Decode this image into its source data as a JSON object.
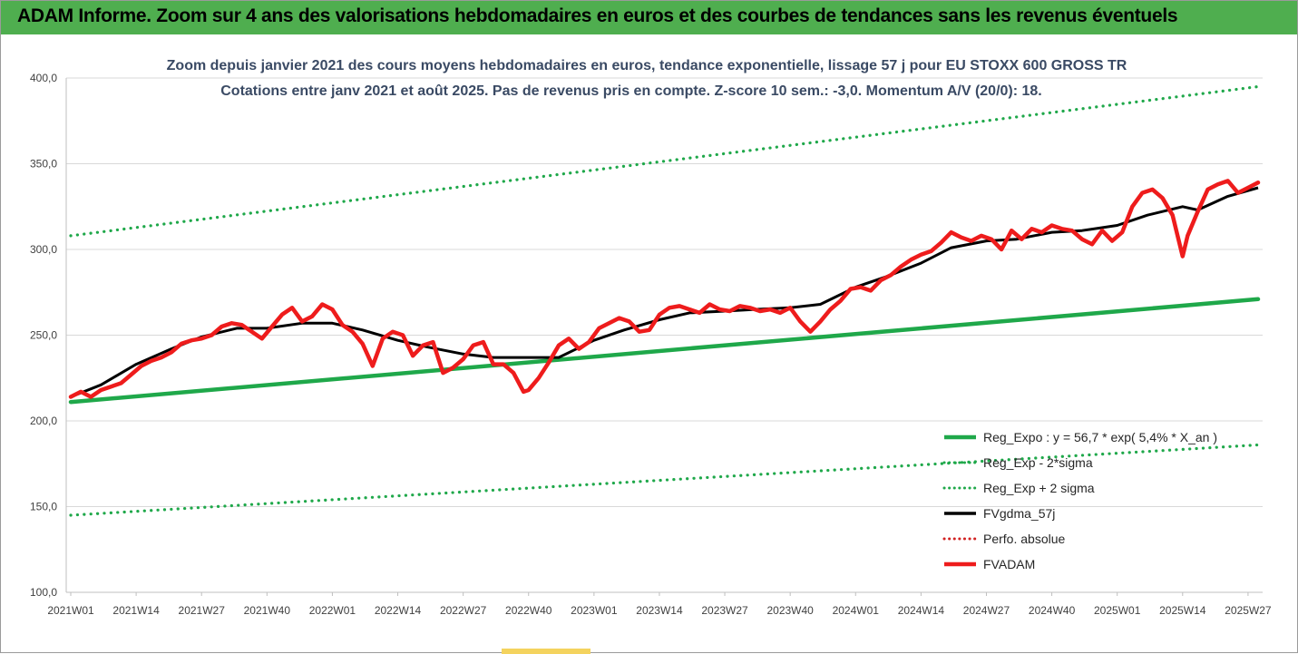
{
  "banner": {
    "title": "ADAM Informe. Zoom sur 4 ans des valorisations hebdomadaires en euros et des courbes de tendances sans les revenus éventuels",
    "color": "#4fae4f"
  },
  "chart_data": {
    "type": "line",
    "title": "Zoom depuis janvier 2021 des cours moyens hebdomadaires en euros, tendance exponentielle, lissage 57 j pour EU STOXX 600 GROSS TR",
    "subtitle": "Cotations entre janv 2021 et août 2025.  Pas de revenus pris en compte. Z-score 10 sem.: -3,0. Momentum A/V (20/0): 18.",
    "xlabel": "",
    "ylabel": "",
    "ylim": [
      100,
      400
    ],
    "yticks": [
      "100,0",
      "150,0",
      "200,0",
      "250,0",
      "300,0",
      "350,0",
      "400,0"
    ],
    "x_tick_labels": [
      "2021W01",
      "2021W14",
      "2021W27",
      "2021W40",
      "2022W01",
      "2022W14",
      "2022W27",
      "2022W40",
      "2023W01",
      "2023W14",
      "2023W27",
      "2023W40",
      "2024W01",
      "2024W14",
      "2024W27",
      "2024W40",
      "2025W01",
      "2025W14",
      "2025W27"
    ],
    "x_tick_index": [
      0,
      13,
      26,
      39,
      52,
      65,
      78,
      91,
      104,
      117,
      130,
      143,
      156,
      169,
      182,
      195,
      208,
      221,
      234
    ],
    "n_weeks": 237,
    "grid": "horizontal",
    "legend_position": "bottom-right",
    "series": [
      {
        "name": "Reg_Expo : y = 56,7 * exp( 5,4% *  X_an )",
        "color": "#1fa84a",
        "style": "solid",
        "x": [
          0,
          236
        ],
        "values": [
          211,
          271
        ]
      },
      {
        "name": "Reg_Exp - 2*sigma",
        "color": "#1fa84a",
        "style": "dotted",
        "x": [
          0,
          236
        ],
        "values": [
          145,
          186
        ]
      },
      {
        "name": "Reg_Exp + 2 sigma",
        "color": "#1fa84a",
        "style": "dotted",
        "x": [
          0,
          236
        ],
        "values": [
          308,
          395
        ]
      },
      {
        "name": "FVgdma_57j",
        "color": "#000000",
        "style": "solid",
        "x": [
          0,
          6,
          13,
          20,
          26,
          33,
          39,
          46,
          52,
          58,
          65,
          71,
          78,
          84,
          91,
          97,
          104,
          110,
          117,
          123,
          130,
          136,
          143,
          149,
          156,
          162,
          169,
          175,
          182,
          188,
          195,
          201,
          208,
          214,
          221,
          224,
          230,
          236
        ],
        "values": [
          214,
          221,
          233,
          242,
          249,
          254,
          254,
          257,
          257,
          253,
          247,
          243,
          239,
          237,
          237,
          237,
          247,
          253,
          259,
          263,
          264,
          265,
          266,
          268,
          278,
          284,
          292,
          301,
          305,
          306,
          310,
          311,
          314,
          320,
          325,
          323,
          331,
          336
        ]
      },
      {
        "name": "Perfo. absolue",
        "color": "#d22222",
        "style": "dotted",
        "x": [],
        "values": []
      },
      {
        "name": "FVADAM",
        "color": "#ee1c1c",
        "style": "solid",
        "x": [
          0,
          2,
          4,
          6,
          8,
          10,
          12,
          14,
          16,
          18,
          20,
          22,
          24,
          26,
          28,
          30,
          32,
          34,
          36,
          38,
          40,
          42,
          44,
          46,
          48,
          50,
          52,
          54,
          56,
          58,
          60,
          62,
          64,
          66,
          68,
          70,
          72,
          74,
          76,
          78,
          80,
          82,
          84,
          86,
          88,
          90,
          91,
          93,
          95,
          97,
          99,
          101,
          103,
          105,
          107,
          109,
          111,
          113,
          115,
          117,
          119,
          121,
          123,
          125,
          127,
          129,
          131,
          133,
          135,
          137,
          139,
          141,
          143,
          145,
          147,
          149,
          151,
          153,
          155,
          157,
          159,
          161,
          163,
          165,
          167,
          169,
          171,
          173,
          175,
          177,
          179,
          181,
          183,
          185,
          187,
          189,
          191,
          193,
          195,
          197,
          199,
          201,
          203,
          205,
          207,
          209,
          211,
          213,
          215,
          217,
          219,
          221,
          222,
          224,
          226,
          228,
          230,
          232,
          234,
          236
        ],
        "values": [
          214,
          217,
          214,
          218,
          220,
          222,
          227,
          232,
          235,
          237,
          240,
          245,
          247,
          248,
          250,
          255,
          257,
          256,
          252,
          248,
          255,
          262,
          266,
          258,
          261,
          268,
          265,
          256,
          252,
          245,
          232,
          248,
          252,
          250,
          238,
          244,
          246,
          228,
          231,
          236,
          244,
          246,
          233,
          233,
          228,
          217,
          218,
          225,
          234,
          244,
          248,
          242,
          246,
          254,
          257,
          260,
          258,
          252,
          253,
          262,
          266,
          267,
          265,
          263,
          268,
          265,
          264,
          267,
          266,
          264,
          265,
          263,
          266,
          258,
          252,
          258,
          265,
          270,
          277,
          278,
          276,
          282,
          285,
          290,
          294,
          297,
          299,
          304,
          310,
          307,
          305,
          308,
          306,
          300,
          311,
          306,
          312,
          310,
          314,
          312,
          311,
          306,
          303,
          311,
          305,
          310,
          325,
          333,
          335,
          330,
          320,
          296,
          308,
          322,
          335,
          338,
          340,
          333,
          336,
          339
        ]
      }
    ]
  }
}
